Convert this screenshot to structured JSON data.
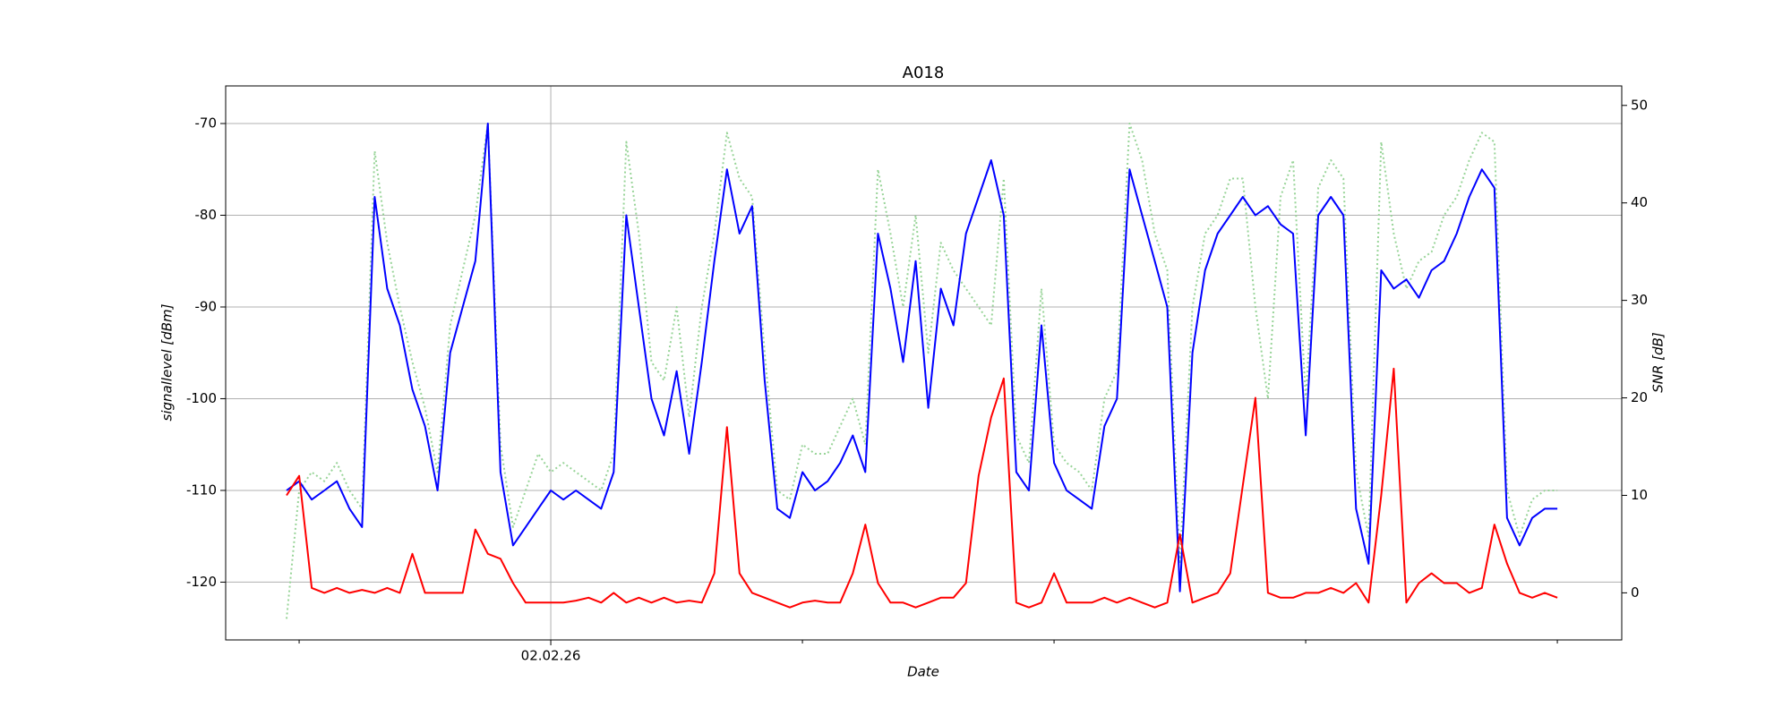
{
  "chart_data": {
    "type": "line",
    "title": "A018",
    "xlabel": "Date",
    "ylabel": "signallevel [dBm]",
    "y2label": "SNR [dB]",
    "x": [
      -0.05,
      0,
      0.05,
      0.1,
      0.15,
      0.2,
      0.25,
      0.3,
      0.35,
      0.4,
      0.45,
      0.5,
      0.55,
      0.6,
      0.65,
      0.7,
      0.75,
      0.8,
      0.85,
      0.9,
      0.95,
      1,
      1.05,
      1.1,
      1.15,
      1.2,
      1.25,
      1.3,
      1.35,
      1.4,
      1.45,
      1.5,
      1.55,
      1.6,
      1.65,
      1.7,
      1.75,
      1.8,
      1.85,
      1.9,
      1.95,
      2,
      2.05,
      2.1,
      2.15,
      2.2,
      2.25,
      2.3,
      2.35,
      2.4,
      2.45,
      2.5,
      2.55,
      2.6,
      2.65,
      2.7,
      2.75,
      2.8,
      2.85,
      2.9,
      2.95,
      3,
      3.05,
      3.1,
      3.15,
      3.2,
      3.25,
      3.3,
      3.35,
      3.4,
      3.45,
      3.5,
      3.55,
      3.6,
      3.65,
      3.7,
      3.75,
      3.8,
      3.85,
      3.9,
      3.95,
      4,
      4.05,
      4.1,
      4.15,
      4.2,
      4.25,
      4.3,
      4.35,
      4.4,
      4.45,
      4.5,
      4.55,
      4.6,
      4.65,
      4.7,
      4.75,
      4.8,
      4.85,
      4.9,
      4.95,
      5
    ],
    "series": [
      {
        "color": "#98d498",
        "linestyle": "dotted",
        "axis": "y",
        "values": [
          -124,
          -110,
          -108,
          -109,
          -107,
          -110,
          -112,
          -73,
          -83,
          -90,
          -96,
          -101,
          -108,
          -92,
          -86,
          -80,
          -70,
          -105,
          -114,
          -110,
          -106,
          -108,
          -107,
          -108,
          -109,
          -110,
          -106,
          -72,
          -82,
          -96,
          -98,
          -90,
          -102,
          -90,
          -82,
          -71,
          -76,
          -78,
          -95,
          -110,
          -111,
          -105,
          -106,
          -106,
          -103,
          -100,
          -105,
          -75,
          -82,
          -90,
          -80,
          -95,
          -83,
          -86,
          -88,
          -90,
          -92,
          -76,
          -104,
          -107,
          -88,
          -105,
          -107,
          -108,
          -110,
          -100,
          -97,
          -70,
          -74,
          -82,
          -86,
          -118,
          -90,
          -82,
          -80,
          -76,
          -76,
          -90,
          -100,
          -78,
          -74,
          -100,
          -77,
          -74,
          -76,
          -108,
          -115,
          -72,
          -82,
          -88,
          -85,
          -84,
          -80,
          -78,
          -74,
          -71,
          -72,
          -110,
          -115,
          -111,
          -110,
          -110
        ]
      },
      {
        "color": "#0000ff",
        "linestyle": "solid",
        "axis": "y",
        "values": [
          -110,
          -109,
          -111,
          -110,
          -109,
          -112,
          -114,
          -78,
          -88,
          -92,
          -99,
          -103,
          -110,
          -95,
          -90,
          -85,
          -70,
          -108,
          -116,
          -114,
          -112,
          -110,
          -111,
          -110,
          -111,
          -112,
          -108,
          -80,
          -90,
          -100,
          -104,
          -97,
          -106,
          -96,
          -85,
          -75,
          -82,
          -79,
          -98,
          -112,
          -113,
          -108,
          -110,
          -109,
          -107,
          -104,
          -108,
          -82,
          -88,
          -96,
          -85,
          -101,
          -88,
          -92,
          -82,
          -78,
          -74,
          -80,
          -108,
          -110,
          -92,
          -107,
          -110,
          -111,
          -112,
          -103,
          -100,
          -75,
          -80,
          -85,
          -90,
          -121,
          -95,
          -86,
          -82,
          -80,
          -78,
          -80,
          -79,
          -81,
          -82,
          -104,
          -80,
          -78,
          -80,
          -112,
          -118,
          -86,
          -88,
          -87,
          -89,
          -86,
          -85,
          -82,
          -78,
          -75,
          -77,
          -113,
          -116,
          -113,
          -112,
          -112
        ]
      },
      {
        "color": "#ff0000",
        "linestyle": "solid",
        "axis": "y2",
        "values": [
          10,
          12,
          0.5,
          0,
          0.5,
          0,
          0.3,
          0,
          0.5,
          0,
          4,
          0,
          0,
          0,
          0,
          6.5,
          4,
          3.5,
          1,
          -1,
          -1,
          -1,
          -1,
          -0.8,
          -0.5,
          -1,
          0,
          -1,
          -0.5,
          -1,
          -0.5,
          -1,
          -0.8,
          -1,
          2,
          17,
          2,
          0,
          -0.5,
          -1,
          -1.5,
          -1,
          -0.8,
          -1,
          -1,
          2,
          7,
          1,
          -1,
          -1,
          -1.5,
          -1,
          -0.5,
          -0.5,
          1,
          12,
          18,
          22,
          -1,
          -1.5,
          -1,
          2,
          -1,
          -1,
          -1,
          -0.5,
          -1,
          -0.5,
          -1,
          -1.5,
          -1,
          6,
          -1,
          -0.5,
          0,
          2,
          11,
          20,
          0,
          -0.5,
          -0.5,
          0,
          0,
          0.5,
          0,
          1,
          -1,
          10,
          23,
          -1,
          1,
          2,
          1,
          1,
          0,
          0.5,
          7,
          3,
          0,
          -0.5,
          0,
          -0.5
        ]
      }
    ],
    "xlim": [
      -0.292,
      5.256
    ],
    "xticks": [
      {
        "value": 1,
        "label": "02.02.26"
      }
    ],
    "xminorticks": [
      0,
      2,
      3,
      4,
      5
    ],
    "ylim": [
      -126.3,
      -65.9
    ],
    "yticks": [
      -120,
      -110,
      -100,
      -90,
      -80,
      -70
    ],
    "y2lim": [
      -4.83,
      52.0
    ],
    "y2ticks": [
      0,
      10,
      20,
      30,
      40,
      50
    ],
    "grid": true
  }
}
